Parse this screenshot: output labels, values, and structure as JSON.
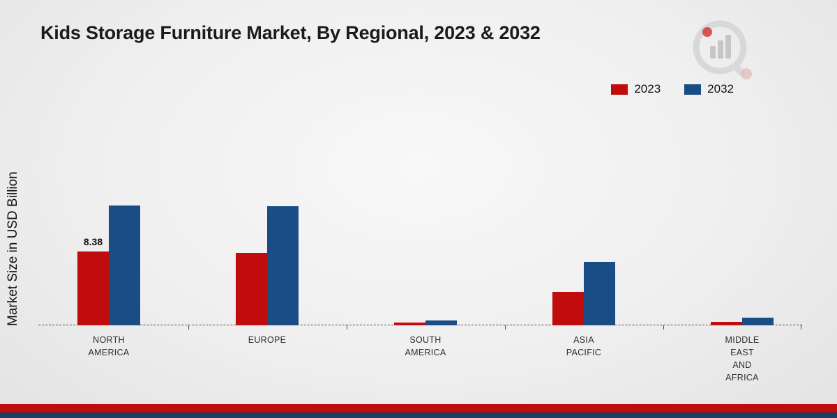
{
  "title": "Kids Storage Furniture Market, By Regional, 2023 & 2032",
  "y_axis_label": "Market Size in USD Billion",
  "legend": [
    {
      "label": "2023",
      "color": "#c00c0c"
    },
    {
      "label": "2032",
      "color": "#1a4c85"
    }
  ],
  "chart_data": {
    "type": "bar",
    "title": "Kids Storage Furniture Market, By Regional, 2023 & 2032",
    "xlabel": "",
    "ylabel": "Market Size in USD Billion",
    "categories": [
      "North America",
      "Europe",
      "South America",
      "Asia Pacific",
      "Middle East and Africa"
    ],
    "category_display_lines": [
      [
        "NORTH",
        "AMERICA"
      ],
      [
        "EUROPE"
      ],
      [
        "SOUTH",
        "AMERICA"
      ],
      [
        "ASIA",
        "PACIFIC"
      ],
      [
        "MIDDLE",
        "EAST",
        "AND",
        "AFRICA"
      ]
    ],
    "series": [
      {
        "name": "2023",
        "color": "#c00c0c",
        "values": [
          8.38,
          8.2,
          0.35,
          3.8,
          0.4
        ]
      },
      {
        "name": "2032",
        "color": "#1a4c85",
        "values": [
          13.6,
          13.5,
          0.55,
          7.2,
          0.85
        ]
      }
    ],
    "value_labels": [
      {
        "series": "2023",
        "category_index": 0,
        "text": "8.38"
      }
    ],
    "ylim": [
      0,
      15
    ],
    "grid": false,
    "legend_position": "top-right",
    "baseline_style": "dashed"
  },
  "footer": {
    "red_band_color": "#c00c0c",
    "navy_band_color": "#1e3d63"
  }
}
